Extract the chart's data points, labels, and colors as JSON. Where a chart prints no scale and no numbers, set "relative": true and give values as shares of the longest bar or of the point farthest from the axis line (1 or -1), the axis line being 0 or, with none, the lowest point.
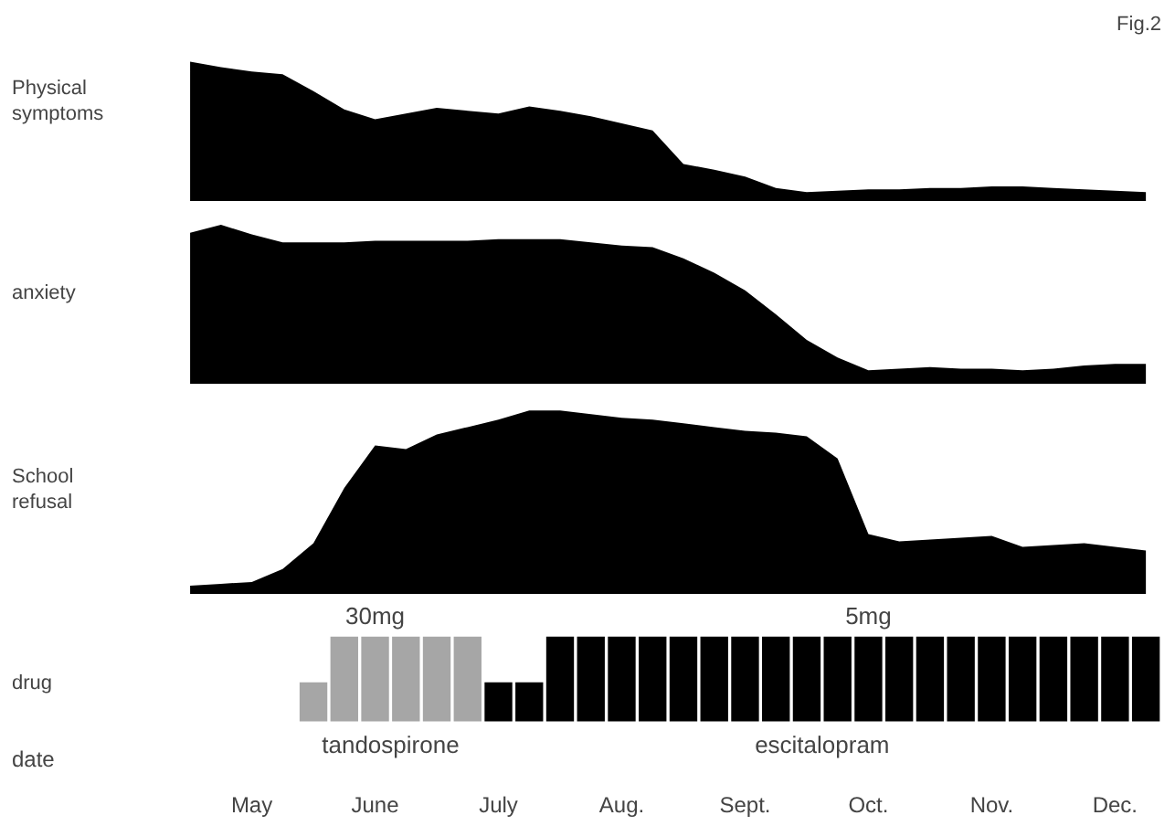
{
  "chart_data": [
    {
      "type": "area",
      "relative": true,
      "title": "Fig.2",
      "ylabel": "Physical symptoms",
      "categories": [
        null,
        null,
        null,
        null,
        null,
        null,
        null,
        null,
        null,
        null,
        null,
        null,
        null,
        null,
        null,
        null,
        null,
        null,
        null,
        null,
        null,
        null,
        null,
        null,
        null,
        null,
        null,
        null,
        null,
        null,
        null,
        null
      ],
      "series": [
        {
          "color": "#000000",
          "values": [
            1,
            0.96,
            0.93,
            0.91,
            0.79,
            0.66,
            0.59,
            0.63,
            0.67,
            0.65,
            0.63,
            0.68,
            0.65,
            0.61,
            0.56,
            0.51,
            0.27,
            0.23,
            0.18,
            0.1,
            0.07,
            0.08,
            0.09,
            0.09,
            0.1,
            0.1,
            0.11,
            0.11,
            0.1,
            0.09,
            0.08,
            0.07
          ]
        }
      ]
    },
    {
      "type": "area",
      "relative": true,
      "ylabel": "anxiety",
      "categories": [
        null,
        null,
        null,
        null,
        null,
        null,
        null,
        null,
        null,
        null,
        null,
        null,
        null,
        null,
        null,
        null,
        null,
        null,
        null,
        null,
        null,
        null,
        null,
        null,
        null,
        null,
        null,
        null,
        null,
        null,
        null,
        null
      ],
      "series": [
        {
          "color": "#000000",
          "values": [
            0.95,
            1,
            0.94,
            0.89,
            0.89,
            0.89,
            0.9,
            0.9,
            0.9,
            0.9,
            0.91,
            0.91,
            0.91,
            0.89,
            0.87,
            0.86,
            0.79,
            0.7,
            0.59,
            0.44,
            0.28,
            0.17,
            0.09,
            0.1,
            0.11,
            0.1,
            0.1,
            0.09,
            0.1,
            0.12,
            0.13,
            0.13
          ]
        }
      ]
    },
    {
      "type": "area",
      "relative": true,
      "ylabel": "School refusal",
      "categories": [
        null,
        null,
        null,
        null,
        null,
        null,
        null,
        null,
        null,
        null,
        null,
        null,
        null,
        null,
        null,
        null,
        null,
        null,
        null,
        null,
        null,
        null,
        null,
        null,
        null,
        null,
        null,
        null,
        null,
        null,
        null,
        null
      ],
      "series": [
        {
          "color": "#000000",
          "values": [
            0.05,
            0.06,
            0.07,
            0.14,
            0.28,
            0.58,
            0.81,
            0.79,
            0.87,
            0.91,
            0.95,
            1,
            1,
            0.98,
            0.96,
            0.95,
            0.93,
            0.91,
            0.89,
            0.88,
            0.86,
            0.74,
            0.33,
            0.29,
            0.3,
            0.31,
            0.32,
            0.26,
            0.27,
            0.28,
            0.26,
            0.24
          ]
        }
      ]
    },
    {
      "type": "bar",
      "relative": true,
      "ylabel": "drug",
      "xlabel": "date",
      "tick_labels": "x",
      "categories": [
        null,
        null,
        "May",
        null,
        null,
        null,
        "June",
        null,
        null,
        null,
        "July",
        null,
        null,
        null,
        "Aug.",
        null,
        null,
        null,
        "Sept.",
        null,
        null,
        null,
        "Oct.",
        null,
        null,
        null,
        "Nov.",
        null,
        null,
        null,
        "Dec.",
        null
      ],
      "annotations": [
        {
          "text": "30mg",
          "x": "June",
          "y": 1
        },
        {
          "text": "5mg",
          "x": "Oct.",
          "y": 1
        }
      ],
      "series": [
        {
          "name": "tandospirone",
          "color": "#a6a6a6",
          "values": [
            0,
            0,
            0,
            0,
            0.46,
            1,
            1,
            1,
            1,
            1,
            0,
            0,
            0,
            0,
            0,
            0,
            0,
            0,
            0,
            0,
            0,
            0,
            0,
            0,
            0,
            0,
            0,
            0,
            0,
            0,
            0,
            0
          ]
        },
        {
          "name": "escitalopram",
          "color": "#000000",
          "values": [
            0,
            0,
            0,
            0,
            0,
            0,
            0,
            0,
            0,
            0,
            0.46,
            0.46,
            1,
            1,
            1,
            1,
            1,
            1,
            1,
            1,
            1,
            1,
            1,
            1,
            1,
            1,
            1,
            1,
            1,
            1,
            1,
            1
          ]
        }
      ]
    }
  ]
}
